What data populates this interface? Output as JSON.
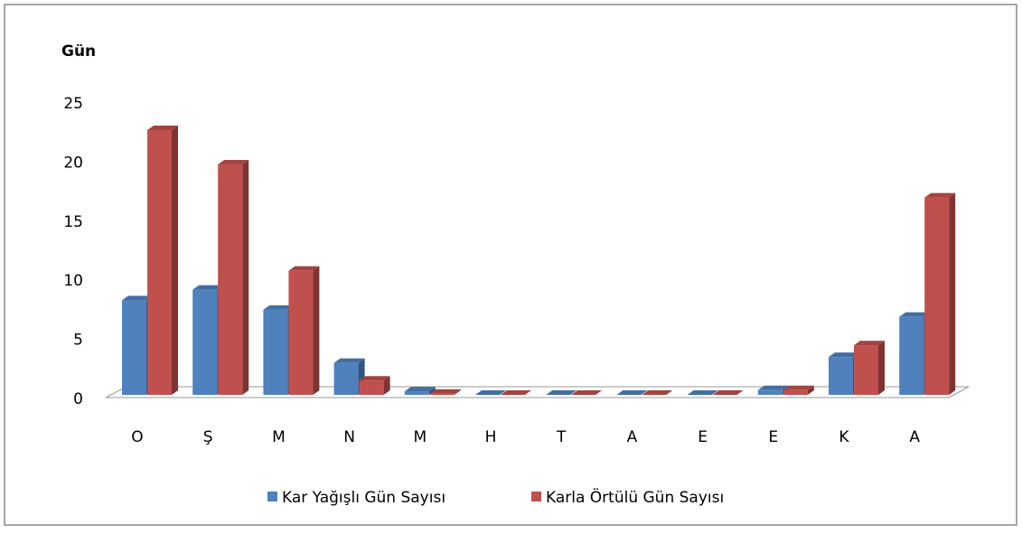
{
  "chart_data": {
    "type": "bar3d",
    "title": "Gün",
    "categories": [
      "O",
      "Ş",
      "M",
      "N",
      "M",
      "H",
      "T",
      "A",
      "E",
      "E",
      "K",
      "A"
    ],
    "series": [
      {
        "name": "Kar Yağışlı Gün Sayısı",
        "color": "#4f81bd",
        "values": [
          8.0,
          8.9,
          7.2,
          2.7,
          0.3,
          0,
          0,
          0,
          0,
          0.4,
          3.2,
          6.6
        ]
      },
      {
        "name": "Karla Örtülü Gün Sayısı",
        "color": "#c0504d",
        "values": [
          22.4,
          19.5,
          10.5,
          1.2,
          0.1,
          0,
          0,
          0,
          0,
          0.4,
          4.2,
          16.7
        ]
      }
    ],
    "ylim": [
      0,
      25
    ],
    "yticks": [
      0,
      5,
      10,
      15,
      20,
      25
    ],
    "grid": false,
    "legend": "bottom"
  }
}
